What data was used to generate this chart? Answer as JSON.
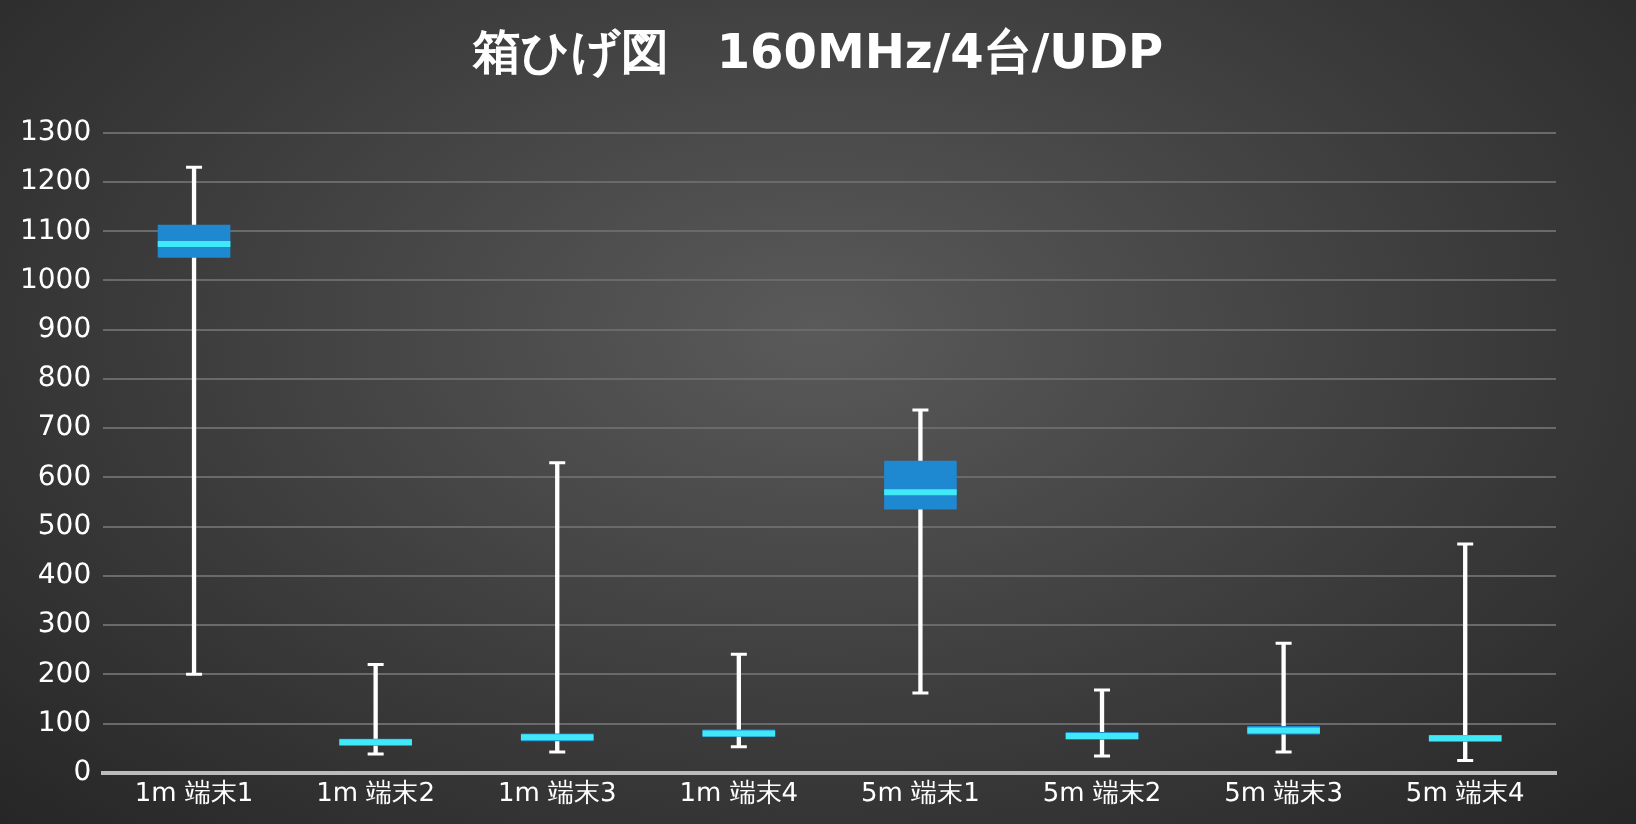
{
  "chart_data": {
    "type": "box",
    "title": "箱ひげ図　160MHz/4台/UDP",
    "categories": [
      "1m 端末1",
      "1m 端末2",
      "1m 端末3",
      "1m 端末4",
      "5m 端末1",
      "5m 端末2",
      "5m 端末3",
      "5m 端末4"
    ],
    "series": [
      {
        "color": "#1e88d0",
        "boxes": [
          {
            "low": 200,
            "q1": 1046,
            "median": 1074,
            "q3": 1113,
            "high": 1230
          },
          {
            "low": 38,
            "q1": 55,
            "median": 62,
            "q3": 69,
            "high": 220
          },
          {
            "low": 42,
            "q1": 64,
            "median": 72,
            "q3": 80,
            "high": 630
          },
          {
            "low": 53,
            "q1": 73,
            "median": 80,
            "q3": 88,
            "high": 241
          },
          {
            "low": 162,
            "q1": 535,
            "median": 570,
            "q3": 634,
            "high": 737
          },
          {
            "low": 34,
            "q1": 67,
            "median": 75,
            "q3": 83,
            "high": 168
          },
          {
            "low": 42,
            "q1": 78,
            "median": 86,
            "q3": 95,
            "high": 263
          },
          {
            "low": 25,
            "q1": 63,
            "median": 70,
            "q3": 77,
            "high": 465
          }
        ]
      }
    ],
    "ylim": [
      0,
      1300
    ],
    "yticks": [
      0,
      100,
      200,
      300,
      400,
      500,
      600,
      700,
      800,
      900,
      1000,
      1100,
      1200,
      1300
    ],
    "grid": "y",
    "legend": false
  }
}
